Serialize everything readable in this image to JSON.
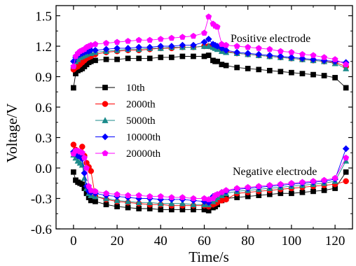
{
  "chart_data": {
    "type": "scatter",
    "xlabel": "Time/s",
    "ylabel": "Voltage/V",
    "xlim": [
      -8,
      128
    ],
    "ylim": [
      -0.6,
      1.6
    ],
    "xticks": [
      "0",
      "20",
      "40",
      "60",
      "80",
      "100",
      "120"
    ],
    "yticks": [
      "-0.6",
      "-0.3",
      "0.0",
      "0.3",
      "0.6",
      "0.9",
      "1.2",
      "1.5"
    ],
    "grid": false,
    "legend_position": "center-left",
    "annotations": [
      "Positive electrode",
      "Negative electrode"
    ],
    "series": [
      {
        "name": "10th",
        "color": "#000000",
        "marker": "square",
        "positive": {
          "x": [
            0,
            1,
            2,
            3,
            4,
            5,
            6,
            7,
            8,
            10,
            15,
            20,
            25,
            30,
            35,
            40,
            45,
            50,
            55,
            60,
            62,
            64,
            65,
            66,
            68,
            70,
            75,
            80,
            85,
            90,
            95,
            100,
            105,
            110,
            115,
            120,
            125
          ],
          "y": [
            0.79,
            0.93,
            0.96,
            0.97,
            0.98,
            1.0,
            1.02,
            1.04,
            1.05,
            1.06,
            1.07,
            1.07,
            1.08,
            1.08,
            1.08,
            1.09,
            1.09,
            1.1,
            1.1,
            1.1,
            1.11,
            1.06,
            1.05,
            1.05,
            1.02,
            1.01,
            0.99,
            0.98,
            0.97,
            0.96,
            0.95,
            0.94,
            0.93,
            0.92,
            0.91,
            0.89,
            0.79
          ]
        },
        "negative": {
          "x": [
            0,
            1,
            2,
            3,
            4,
            5,
            6,
            7,
            8,
            10,
            15,
            20,
            25,
            30,
            35,
            40,
            45,
            50,
            55,
            60,
            62,
            64,
            65,
            66,
            68,
            70,
            75,
            80,
            85,
            90,
            95,
            100,
            105,
            110,
            115,
            120,
            125
          ],
          "y": [
            -0.04,
            -0.12,
            -0.14,
            -0.15,
            -0.16,
            -0.2,
            -0.25,
            -0.29,
            -0.32,
            -0.33,
            -0.36,
            -0.38,
            -0.39,
            -0.4,
            -0.4,
            -0.41,
            -0.41,
            -0.41,
            -0.41,
            -0.41,
            -0.42,
            -0.39,
            -0.38,
            -0.36,
            -0.32,
            -0.3,
            -0.29,
            -0.28,
            -0.27,
            -0.26,
            -0.25,
            -0.25,
            -0.24,
            -0.23,
            -0.22,
            -0.2,
            -0.04
          ]
        }
      },
      {
        "name": "2000th",
        "color": "#ff0000",
        "marker": "circle",
        "positive": {
          "x": [
            0,
            1,
            2,
            3,
            4,
            5,
            6,
            7,
            8,
            10,
            15,
            20,
            25,
            30,
            35,
            40,
            45,
            50,
            55,
            60,
            62,
            64,
            65,
            66,
            68,
            70,
            75,
            80,
            85,
            90,
            95,
            100,
            105,
            110,
            115,
            120,
            125
          ],
          "y": [
            0.97,
            0.99,
            1.0,
            1.02,
            1.04,
            1.06,
            1.08,
            1.09,
            1.1,
            1.12,
            1.14,
            1.15,
            1.16,
            1.16,
            1.17,
            1.18,
            1.18,
            1.19,
            1.19,
            1.2,
            1.2,
            1.19,
            1.19,
            1.18,
            1.16,
            1.15,
            1.13,
            1.12,
            1.11,
            1.1,
            1.09,
            1.08,
            1.07,
            1.06,
            1.05,
            1.04,
            1.0
          ]
        },
        "negative": {
          "x": [
            0,
            1,
            2,
            3,
            4,
            5,
            6,
            7,
            8,
            10,
            15,
            20,
            25,
            30,
            35,
            40,
            45,
            50,
            55,
            60,
            62,
            64,
            65,
            66,
            68,
            70,
            75,
            80,
            85,
            90,
            95,
            100,
            105,
            110,
            115,
            120,
            125
          ],
          "y": [
            0.23,
            0.18,
            0.16,
            0.14,
            0.21,
            0.12,
            0.05,
            0.01,
            -0.03,
            -0.28,
            -0.31,
            -0.33,
            -0.34,
            -0.35,
            -0.36,
            -0.36,
            -0.37,
            -0.37,
            -0.37,
            -0.37,
            -0.38,
            -0.36,
            -0.35,
            -0.34,
            -0.32,
            -0.31,
            -0.25,
            -0.24,
            -0.23,
            -0.22,
            -0.21,
            -0.2,
            -0.19,
            -0.18,
            -0.17,
            -0.16,
            -0.13
          ]
        }
      },
      {
        "name": "5000th",
        "color": "#1a8a8a",
        "marker": "triangle",
        "positive": {
          "x": [
            0,
            1,
            2,
            3,
            4,
            5,
            6,
            7,
            8,
            10,
            15,
            20,
            25,
            30,
            35,
            40,
            45,
            50,
            55,
            60,
            62,
            64,
            65,
            66,
            68,
            70,
            75,
            80,
            85,
            90,
            95,
            100,
            105,
            110,
            115,
            120,
            125
          ],
          "y": [
            1.01,
            1.05,
            1.07,
            1.09,
            1.1,
            1.11,
            1.12,
            1.13,
            1.13,
            1.14,
            1.15,
            1.16,
            1.17,
            1.17,
            1.18,
            1.18,
            1.19,
            1.19,
            1.19,
            1.2,
            1.2,
            1.19,
            1.18,
            1.17,
            1.15,
            1.14,
            1.13,
            1.12,
            1.11,
            1.1,
            1.09,
            1.08,
            1.07,
            1.06,
            1.05,
            1.03,
            0.98
          ]
        },
        "negative": {
          "x": [
            0,
            1,
            2,
            3,
            4,
            5,
            6,
            7,
            8,
            10,
            15,
            20,
            25,
            30,
            35,
            40,
            45,
            50,
            55,
            60,
            62,
            64,
            65,
            66,
            68,
            70,
            75,
            80,
            85,
            90,
            95,
            100,
            105,
            110,
            115,
            120,
            125
          ],
          "y": [
            0.13,
            0.1,
            0.07,
            0.05,
            0.03,
            -0.1,
            -0.2,
            -0.25,
            -0.27,
            -0.28,
            -0.3,
            -0.32,
            -0.33,
            -0.34,
            -0.34,
            -0.35,
            -0.35,
            -0.35,
            -0.36,
            -0.36,
            -0.36,
            -0.33,
            -0.31,
            -0.29,
            -0.27,
            -0.25,
            -0.23,
            -0.22,
            -0.21,
            -0.2,
            -0.19,
            -0.18,
            -0.17,
            -0.16,
            -0.15,
            -0.13,
            0.07
          ]
        }
      },
      {
        "name": "10000th",
        "color": "#0000ff",
        "marker": "diamond",
        "positive": {
          "x": [
            0,
            1,
            2,
            3,
            4,
            5,
            6,
            7,
            8,
            10,
            15,
            20,
            25,
            30,
            35,
            40,
            45,
            50,
            55,
            60,
            62,
            64,
            65,
            66,
            68,
            70,
            75,
            80,
            85,
            90,
            95,
            100,
            105,
            110,
            115,
            120,
            125
          ],
          "y": [
            1.05,
            1.09,
            1.11,
            1.12,
            1.13,
            1.14,
            1.15,
            1.15,
            1.16,
            1.16,
            1.17,
            1.18,
            1.18,
            1.19,
            1.19,
            1.2,
            1.2,
            1.21,
            1.21,
            1.24,
            1.27,
            1.22,
            1.21,
            1.2,
            1.18,
            1.16,
            1.14,
            1.13,
            1.12,
            1.11,
            1.1,
            1.09,
            1.08,
            1.07,
            1.06,
            1.05,
            1.04
          ]
        },
        "negative": {
          "x": [
            0,
            1,
            2,
            3,
            4,
            5,
            6,
            7,
            8,
            10,
            15,
            20,
            25,
            30,
            35,
            40,
            45,
            50,
            55,
            60,
            62,
            64,
            65,
            66,
            68,
            70,
            75,
            80,
            85,
            90,
            95,
            100,
            105,
            110,
            115,
            120,
            125
          ],
          "y": [
            0.16,
            0.14,
            0.12,
            0.11,
            0.09,
            -0.05,
            -0.18,
            -0.23,
            -0.24,
            -0.25,
            -0.27,
            -0.28,
            -0.29,
            -0.3,
            -0.3,
            -0.31,
            -0.31,
            -0.31,
            -0.32,
            -0.33,
            -0.34,
            -0.28,
            -0.27,
            -0.26,
            -0.24,
            -0.23,
            -0.21,
            -0.2,
            -0.19,
            -0.18,
            -0.17,
            -0.16,
            -0.15,
            -0.14,
            -0.13,
            -0.11,
            0.19
          ]
        }
      },
      {
        "name": "20000th",
        "color": "#ff00ff",
        "marker": "pentagon",
        "positive": {
          "x": [
            0,
            1,
            2,
            3,
            4,
            5,
            6,
            7,
            8,
            10,
            15,
            20,
            25,
            30,
            35,
            40,
            45,
            50,
            55,
            60,
            62,
            64,
            65,
            66,
            68,
            70,
            75,
            80,
            85,
            90,
            95,
            100,
            105,
            110,
            115,
            120,
            125
          ],
          "y": [
            1.0,
            1.1,
            1.13,
            1.15,
            1.16,
            1.17,
            1.19,
            1.2,
            1.21,
            1.22,
            1.23,
            1.24,
            1.25,
            1.26,
            1.26,
            1.27,
            1.28,
            1.29,
            1.3,
            1.33,
            1.49,
            1.42,
            1.4,
            1.39,
            1.22,
            1.21,
            1.2,
            1.19,
            1.18,
            1.17,
            1.15,
            1.14,
            1.12,
            1.11,
            1.09,
            1.07,
            1.02
          ]
        },
        "negative": {
          "x": [
            0,
            1,
            2,
            3,
            4,
            5,
            6,
            7,
            8,
            10,
            15,
            20,
            25,
            30,
            35,
            40,
            45,
            50,
            55,
            60,
            62,
            64,
            65,
            66,
            68,
            70,
            75,
            80,
            85,
            90,
            95,
            100,
            105,
            110,
            115,
            120,
            125
          ],
          "y": [
            0.14,
            0.17,
            0.17,
            0.16,
            0.15,
            0.1,
            0.0,
            -0.18,
            -0.22,
            -0.23,
            -0.25,
            -0.26,
            -0.27,
            -0.27,
            -0.28,
            -0.28,
            -0.29,
            -0.29,
            -0.3,
            -0.3,
            -0.31,
            -0.3,
            -0.27,
            -0.26,
            -0.24,
            -0.22,
            -0.2,
            -0.19,
            -0.18,
            -0.17,
            -0.16,
            -0.15,
            -0.14,
            -0.13,
            -0.12,
            -0.1,
            0.1
          ]
        }
      }
    ]
  }
}
